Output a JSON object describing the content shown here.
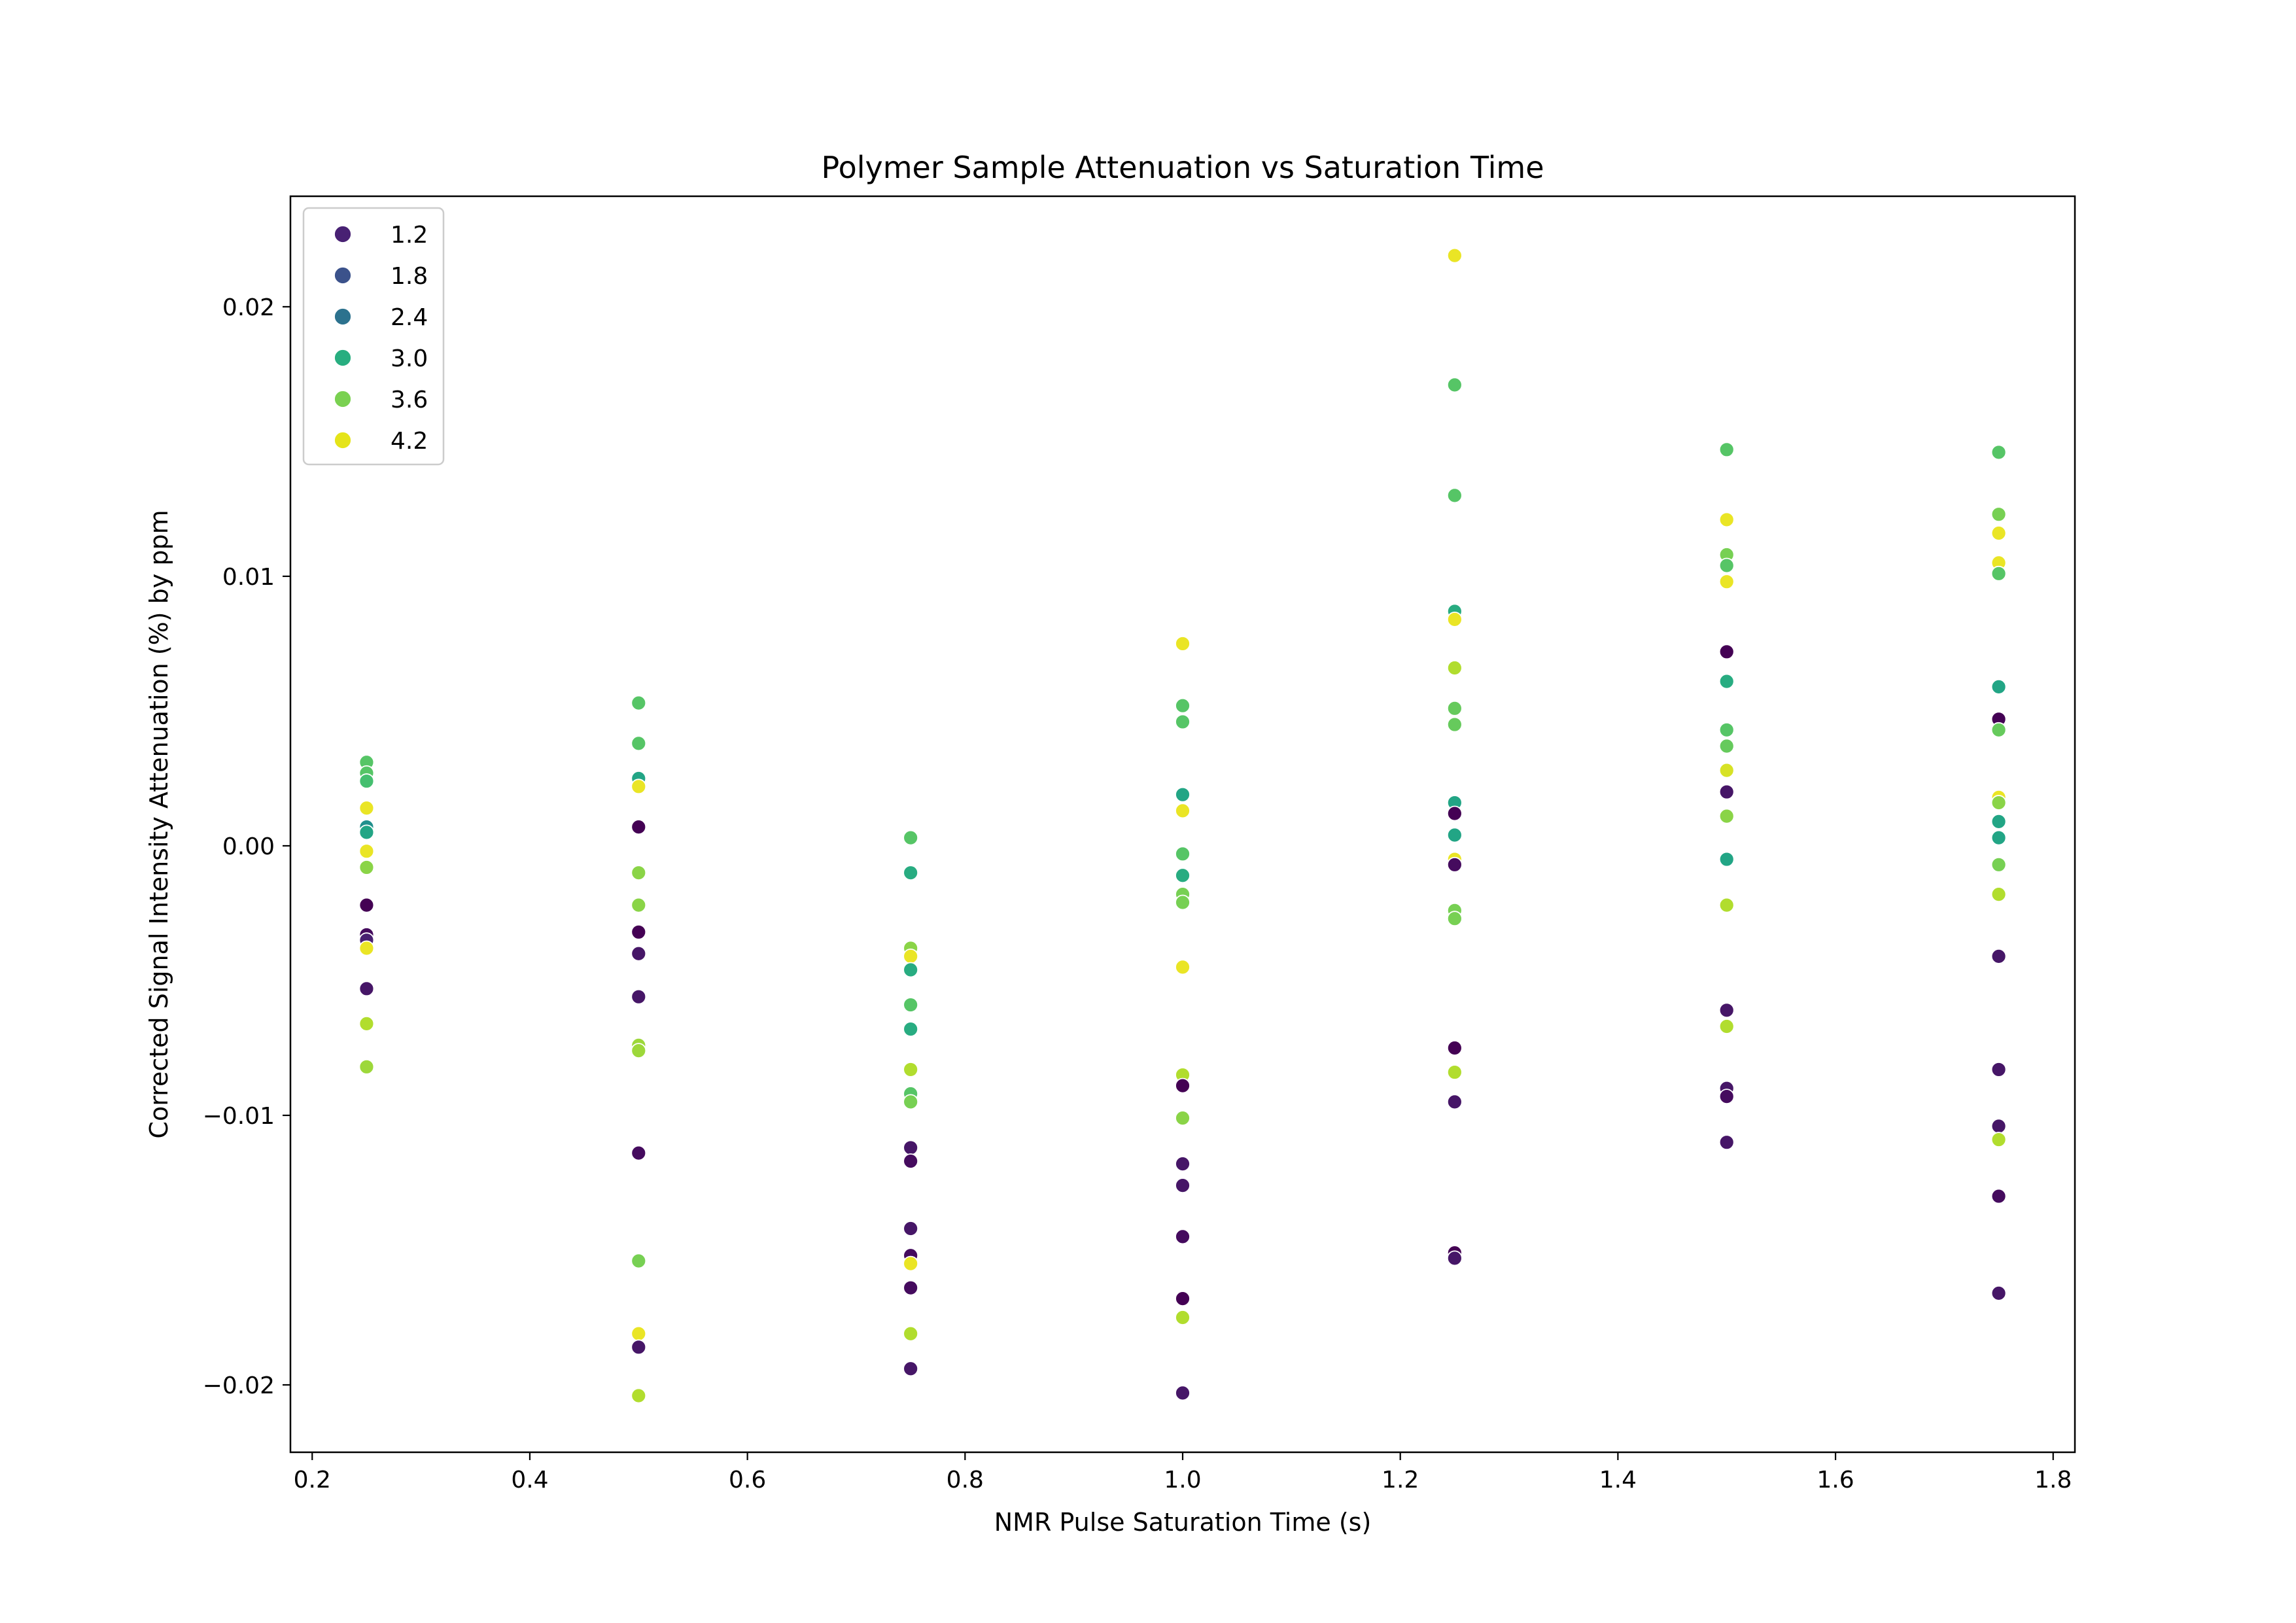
{
  "chart_data": {
    "type": "scatter",
    "title": "Polymer Sample Attenuation vs Saturation Time",
    "xlabel": "NMR Pulse Saturation Time (s)",
    "ylabel": "Corrected Signal Intensity Attenuation  (%) by ppm",
    "xlim": [
      0.18,
      1.82
    ],
    "ylim": [
      -0.0225,
      0.0241
    ],
    "xticks": [
      0.2,
      0.4,
      0.6,
      0.8,
      1.0,
      1.2,
      1.4,
      1.6,
      1.8
    ],
    "xtick_labels": [
      "0.2",
      "0.4",
      "0.6",
      "0.8",
      "1.0",
      "1.2",
      "1.4",
      "1.6",
      "1.8"
    ],
    "yticks": [
      -0.02,
      -0.01,
      0.0,
      0.01,
      0.02
    ],
    "ytick_labels": [
      "−0.02",
      "−0.01",
      "0.00",
      "0.01",
      "0.02"
    ],
    "grid": false,
    "legend_position": "top-left",
    "colormap": "viridis",
    "color_range": [
      1.0,
      4.4
    ],
    "legend": [
      {
        "label": "1.2",
        "color": "#482173"
      },
      {
        "label": "1.8",
        "color": "#3b528b"
      },
      {
        "label": "2.4",
        "color": "#2c728e"
      },
      {
        "label": "3.0",
        "color": "#28ae80"
      },
      {
        "label": "3.6",
        "color": "#7ad151"
      },
      {
        "label": "4.2",
        "color": "#e5e419"
      }
    ],
    "points": [
      {
        "x": 0.25,
        "y": 0.0031,
        "c": 3.5
      },
      {
        "x": 0.25,
        "y": 0.0027,
        "c": 3.5
      },
      {
        "x": 0.25,
        "y": 0.0024,
        "c": 3.4
      },
      {
        "x": 0.25,
        "y": 0.0014,
        "c": 4.3
      },
      {
        "x": 0.25,
        "y": 0.0007,
        "c": 2.7
      },
      {
        "x": 0.25,
        "y": 0.0005,
        "c": 3.0
      },
      {
        "x": 0.25,
        "y": -0.0002,
        "c": 4.3
      },
      {
        "x": 0.25,
        "y": -0.0008,
        "c": 3.8
      },
      {
        "x": 0.25,
        "y": -0.0022,
        "c": 1.0
      },
      {
        "x": 0.25,
        "y": -0.0033,
        "c": 1.1
      },
      {
        "x": 0.25,
        "y": -0.0035,
        "c": 1.3
      },
      {
        "x": 0.25,
        "y": -0.0038,
        "c": 4.3
      },
      {
        "x": 0.25,
        "y": -0.0053,
        "c": 1.2
      },
      {
        "x": 0.25,
        "y": -0.0066,
        "c": 4.0
      },
      {
        "x": 0.25,
        "y": -0.0082,
        "c": 3.9
      },
      {
        "x": 0.5,
        "y": 0.0053,
        "c": 3.5
      },
      {
        "x": 0.5,
        "y": 0.0038,
        "c": 3.5
      },
      {
        "x": 0.5,
        "y": 0.0025,
        "c": 3.0
      },
      {
        "x": 0.5,
        "y": 0.0022,
        "c": 4.3
      },
      {
        "x": 0.5,
        "y": 0.0007,
        "c": 1.0
      },
      {
        "x": 0.5,
        "y": -0.001,
        "c": 3.8
      },
      {
        "x": 0.5,
        "y": -0.0022,
        "c": 3.8
      },
      {
        "x": 0.5,
        "y": -0.0032,
        "c": 1.0
      },
      {
        "x": 0.5,
        "y": -0.004,
        "c": 1.2
      },
      {
        "x": 0.5,
        "y": -0.0056,
        "c": 1.2
      },
      {
        "x": 0.5,
        "y": -0.0074,
        "c": 3.9
      },
      {
        "x": 0.5,
        "y": -0.0076,
        "c": 3.9
      },
      {
        "x": 0.5,
        "y": -0.0114,
        "c": 1.1
      },
      {
        "x": 0.5,
        "y": -0.0154,
        "c": 3.7
      },
      {
        "x": 0.5,
        "y": -0.0181,
        "c": 4.3
      },
      {
        "x": 0.5,
        "y": -0.0186,
        "c": 1.2
      },
      {
        "x": 0.5,
        "y": -0.0204,
        "c": 4.0
      },
      {
        "x": 0.75,
        "y": 0.0003,
        "c": 3.5
      },
      {
        "x": 0.75,
        "y": -0.001,
        "c": 3.1
      },
      {
        "x": 0.75,
        "y": -0.0038,
        "c": 3.8
      },
      {
        "x": 0.75,
        "y": -0.0041,
        "c": 4.3
      },
      {
        "x": 0.75,
        "y": -0.0046,
        "c": 3.1
      },
      {
        "x": 0.75,
        "y": -0.0059,
        "c": 3.5
      },
      {
        "x": 0.75,
        "y": -0.0068,
        "c": 3.1
      },
      {
        "x": 0.75,
        "y": -0.0083,
        "c": 4.0
      },
      {
        "x": 0.75,
        "y": -0.0092,
        "c": 3.5
      },
      {
        "x": 0.75,
        "y": -0.0095,
        "c": 3.7
      },
      {
        "x": 0.75,
        "y": -0.0112,
        "c": 1.2
      },
      {
        "x": 0.75,
        "y": -0.0117,
        "c": 1.1
      },
      {
        "x": 0.75,
        "y": -0.0142,
        "c": 1.2
      },
      {
        "x": 0.75,
        "y": -0.0152,
        "c": 1.1
      },
      {
        "x": 0.75,
        "y": -0.0155,
        "c": 4.3
      },
      {
        "x": 0.75,
        "y": -0.0164,
        "c": 1.1
      },
      {
        "x": 0.75,
        "y": -0.0181,
        "c": 4.0
      },
      {
        "x": 0.75,
        "y": -0.0194,
        "c": 1.2
      },
      {
        "x": 1.0,
        "y": 0.0075,
        "c": 4.3
      },
      {
        "x": 1.0,
        "y": 0.0052,
        "c": 3.5
      },
      {
        "x": 1.0,
        "y": 0.0046,
        "c": 3.5
      },
      {
        "x": 1.0,
        "y": 0.0019,
        "c": 3.0
      },
      {
        "x": 1.0,
        "y": 0.0013,
        "c": 4.3
      },
      {
        "x": 1.0,
        "y": -0.0003,
        "c": 3.5
      },
      {
        "x": 1.0,
        "y": -0.0011,
        "c": 3.1
      },
      {
        "x": 1.0,
        "y": -0.0018,
        "c": 3.7
      },
      {
        "x": 1.0,
        "y": -0.0021,
        "c": 3.7
      },
      {
        "x": 1.0,
        "y": -0.0045,
        "c": 4.3
      },
      {
        "x": 1.0,
        "y": -0.0085,
        "c": 4.0
      },
      {
        "x": 1.0,
        "y": -0.0089,
        "c": 1.0
      },
      {
        "x": 1.0,
        "y": -0.0101,
        "c": 3.8
      },
      {
        "x": 1.0,
        "y": -0.0118,
        "c": 1.2
      },
      {
        "x": 1.0,
        "y": -0.0126,
        "c": 1.2
      },
      {
        "x": 1.0,
        "y": -0.0145,
        "c": 1.1
      },
      {
        "x": 1.0,
        "y": -0.0168,
        "c": 1.0
      },
      {
        "x": 1.0,
        "y": -0.0175,
        "c": 4.0
      },
      {
        "x": 1.0,
        "y": -0.0203,
        "c": 1.2
      },
      {
        "x": 1.25,
        "y": 0.0219,
        "c": 4.3
      },
      {
        "x": 1.25,
        "y": 0.0171,
        "c": 3.5
      },
      {
        "x": 1.25,
        "y": 0.013,
        "c": 3.5
      },
      {
        "x": 1.25,
        "y": 0.0087,
        "c": 3.1
      },
      {
        "x": 1.25,
        "y": 0.0084,
        "c": 4.3
      },
      {
        "x": 1.25,
        "y": 0.0066,
        "c": 4.0
      },
      {
        "x": 1.25,
        "y": 0.0051,
        "c": 3.6
      },
      {
        "x": 1.25,
        "y": 0.0045,
        "c": 3.6
      },
      {
        "x": 1.25,
        "y": 0.0016,
        "c": 3.0
      },
      {
        "x": 1.25,
        "y": 0.0012,
        "c": 1.0
      },
      {
        "x": 1.25,
        "y": 0.0004,
        "c": 3.0
      },
      {
        "x": 1.25,
        "y": -0.0005,
        "c": 4.3
      },
      {
        "x": 1.25,
        "y": -0.0007,
        "c": 1.1
      },
      {
        "x": 1.25,
        "y": -0.0024,
        "c": 3.7
      },
      {
        "x": 1.25,
        "y": -0.0027,
        "c": 3.7
      },
      {
        "x": 1.25,
        "y": -0.0075,
        "c": 1.0
      },
      {
        "x": 1.25,
        "y": -0.0084,
        "c": 4.0
      },
      {
        "x": 1.25,
        "y": -0.0095,
        "c": 1.2
      },
      {
        "x": 1.25,
        "y": -0.0151,
        "c": 1.0
      },
      {
        "x": 1.25,
        "y": -0.0153,
        "c": 1.2
      },
      {
        "x": 1.5,
        "y": 0.0147,
        "c": 3.5
      },
      {
        "x": 1.5,
        "y": 0.0121,
        "c": 4.3
      },
      {
        "x": 1.5,
        "y": 0.0108,
        "c": 3.7
      },
      {
        "x": 1.5,
        "y": 0.0104,
        "c": 3.5
      },
      {
        "x": 1.5,
        "y": 0.0098,
        "c": 4.3
      },
      {
        "x": 1.5,
        "y": 0.0072,
        "c": 1.0
      },
      {
        "x": 1.5,
        "y": 0.0061,
        "c": 3.1
      },
      {
        "x": 1.5,
        "y": 0.0043,
        "c": 3.5
      },
      {
        "x": 1.5,
        "y": 0.0037,
        "c": 3.6
      },
      {
        "x": 1.5,
        "y": 0.0028,
        "c": 4.2
      },
      {
        "x": 1.5,
        "y": 0.002,
        "c": 1.2
      },
      {
        "x": 1.5,
        "y": 0.0011,
        "c": 3.8
      },
      {
        "x": 1.5,
        "y": -0.0005,
        "c": 3.0
      },
      {
        "x": 1.5,
        "y": -0.0022,
        "c": 4.0
      },
      {
        "x": 1.5,
        "y": -0.0061,
        "c": 1.2
      },
      {
        "x": 1.5,
        "y": -0.0067,
        "c": 4.0
      },
      {
        "x": 1.5,
        "y": -0.009,
        "c": 1.2
      },
      {
        "x": 1.5,
        "y": -0.0093,
        "c": 1.1
      },
      {
        "x": 1.5,
        "y": -0.011,
        "c": 1.2
      },
      {
        "x": 1.75,
        "y": 0.0146,
        "c": 3.5
      },
      {
        "x": 1.75,
        "y": 0.0123,
        "c": 3.7
      },
      {
        "x": 1.75,
        "y": 0.0116,
        "c": 4.3
      },
      {
        "x": 1.75,
        "y": 0.0105,
        "c": 4.3
      },
      {
        "x": 1.75,
        "y": 0.0101,
        "c": 3.5
      },
      {
        "x": 1.75,
        "y": 0.0059,
        "c": 3.0
      },
      {
        "x": 1.75,
        "y": 0.0047,
        "c": 1.0
      },
      {
        "x": 1.75,
        "y": 0.0043,
        "c": 3.6
      },
      {
        "x": 1.75,
        "y": 0.0018,
        "c": 4.3
      },
      {
        "x": 1.75,
        "y": 0.0016,
        "c": 3.8
      },
      {
        "x": 1.75,
        "y": 0.0009,
        "c": 3.0
      },
      {
        "x": 1.75,
        "y": 0.0003,
        "c": 3.0
      },
      {
        "x": 1.75,
        "y": -0.0007,
        "c": 3.7
      },
      {
        "x": 1.75,
        "y": -0.0018,
        "c": 4.0
      },
      {
        "x": 1.75,
        "y": -0.0041,
        "c": 1.2
      },
      {
        "x": 1.75,
        "y": -0.0083,
        "c": 1.2
      },
      {
        "x": 1.75,
        "y": -0.0104,
        "c": 1.2
      },
      {
        "x": 1.75,
        "y": -0.0109,
        "c": 4.0
      },
      {
        "x": 1.75,
        "y": -0.013,
        "c": 1.1
      },
      {
        "x": 1.75,
        "y": -0.0166,
        "c": 1.2
      }
    ]
  }
}
